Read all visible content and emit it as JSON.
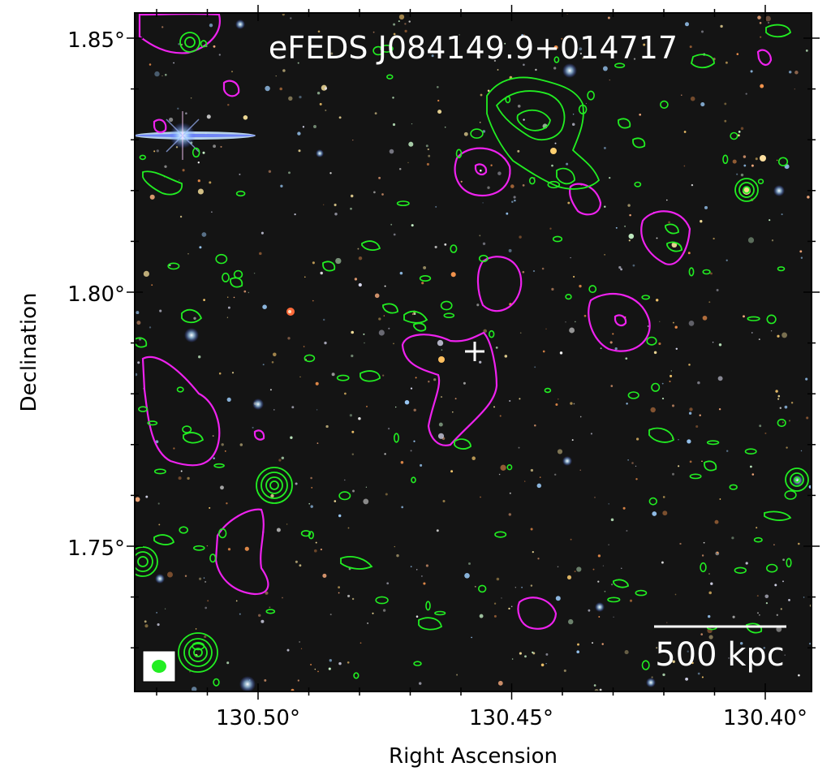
{
  "title": "eFEDS J084149.9+014717",
  "x_axis_label": "Right Ascension",
  "y_axis_label": "Declination",
  "x_ticks": [
    "130.50°",
    "130.45°",
    "130.40°"
  ],
  "y_ticks": [
    "1.85°",
    "1.80°",
    "1.75°"
  ],
  "scale_bar_label": "500 kpc",
  "colors": {
    "background": "#141414",
    "radio_contours": "#22ee22",
    "xray_contours": "#ee22ee",
    "marker": "#ffffff"
  },
  "image": {
    "ra_range": [
      130.524,
      130.391
    ],
    "dec_range": [
      1.727,
      1.855
    ],
    "center_marker": {
      "ra": 130.453,
      "dec": 1.788
    }
  }
}
